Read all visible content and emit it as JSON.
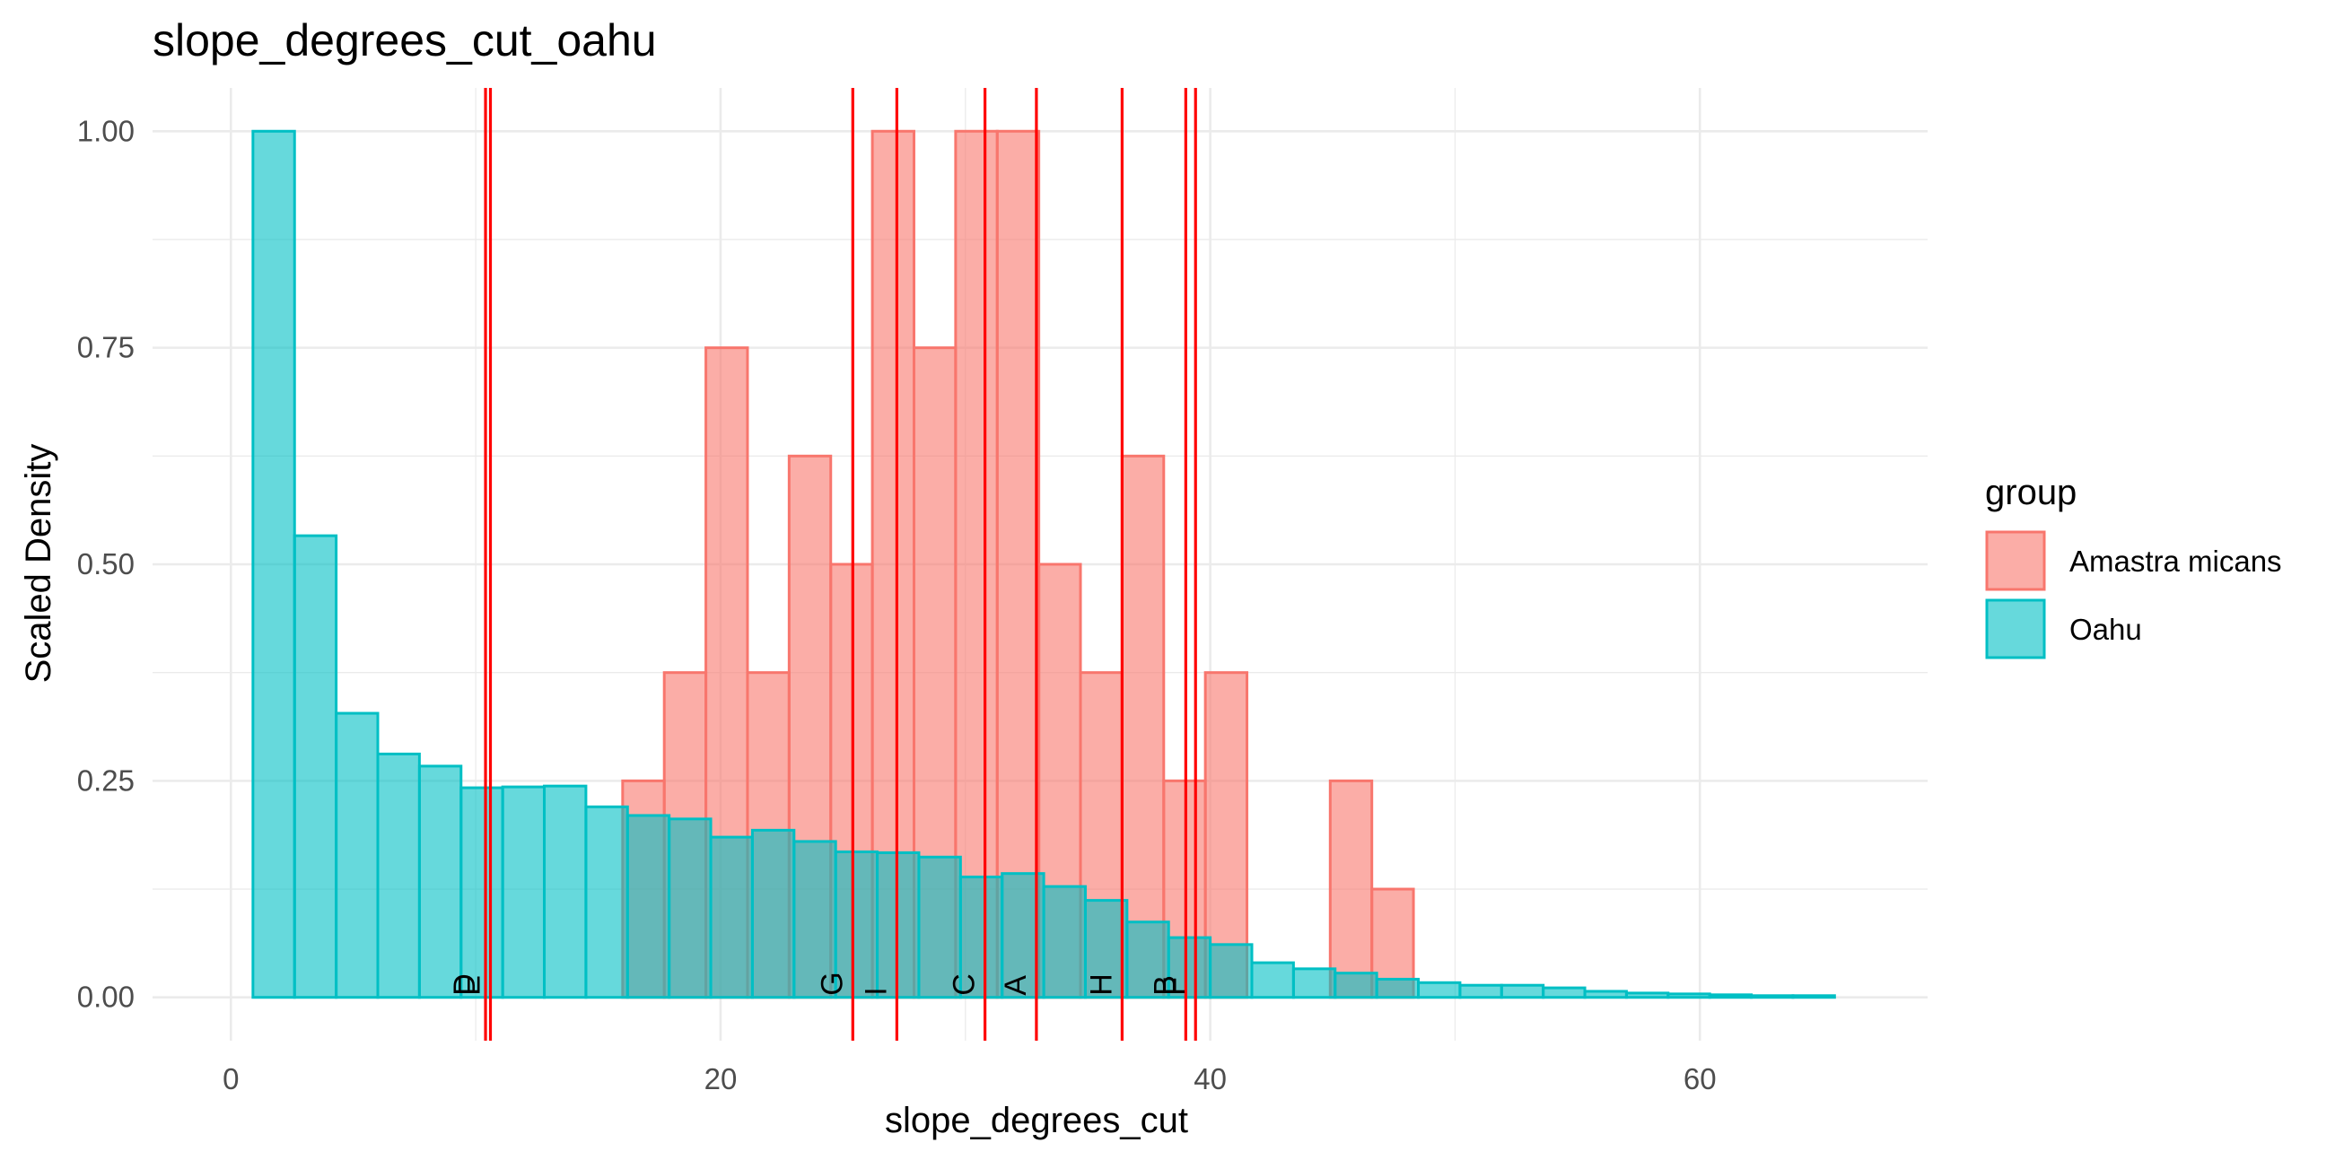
{
  "chart_data": {
    "type": "bar",
    "title": "slope_degrees_cut_oahu",
    "xlabel": "slope_degrees_cut",
    "ylabel": "Scaled Density",
    "xlim": [
      -3.2,
      69.3
    ],
    "ylim": [
      -0.05,
      1.05
    ],
    "x_ticks": [
      0,
      20,
      40,
      60
    ],
    "y_ticks": [
      0,
      0.25,
      0.5,
      0.75,
      1.0
    ],
    "y_tick_labels": [
      "0.00",
      "0.25",
      "0.50",
      "0.75",
      "1.00"
    ],
    "grid": true,
    "legend": {
      "title": "group",
      "position": "right"
    },
    "series": [
      {
        "name": "Amastra micans",
        "color": "#F8766D",
        "bins": [
          {
            "x0": 16.0,
            "x1": 17.7,
            "value": 0.25
          },
          {
            "x0": 17.7,
            "x1": 19.4,
            "value": 0.375
          },
          {
            "x0": 19.4,
            "x1": 21.1,
            "value": 0.75
          },
          {
            "x0": 21.1,
            "x1": 22.8,
            "value": 0.375
          },
          {
            "x0": 22.8,
            "x1": 24.5,
            "value": 0.625
          },
          {
            "x0": 24.5,
            "x1": 26.2,
            "value": 0.5
          },
          {
            "x0": 26.2,
            "x1": 27.9,
            "value": 1.0
          },
          {
            "x0": 27.9,
            "x1": 29.6,
            "value": 0.75
          },
          {
            "x0": 29.6,
            "x1": 31.3,
            "value": 1.0
          },
          {
            "x0": 31.3,
            "x1": 33.0,
            "value": 1.0
          },
          {
            "x0": 33.0,
            "x1": 34.7,
            "value": 0.5
          },
          {
            "x0": 34.7,
            "x1": 36.4,
            "value": 0.375
          },
          {
            "x0": 36.4,
            "x1": 38.1,
            "value": 0.625
          },
          {
            "x0": 38.1,
            "x1": 39.8,
            "value": 0.25
          },
          {
            "x0": 39.8,
            "x1": 41.5,
            "value": 0.375
          },
          {
            "x0": 44.9,
            "x1": 46.6,
            "value": 0.25
          },
          {
            "x0": 46.6,
            "x1": 48.3,
            "value": 0.125
          }
        ]
      },
      {
        "name": "Oahu",
        "color": "#00BFC4",
        "bins": [
          {
            "x0": 0.9,
            "x1": 2.6,
            "value": 1.0
          },
          {
            "x0": 2.6,
            "x1": 4.3,
            "value": 0.533
          },
          {
            "x0": 4.3,
            "x1": 6.0,
            "value": 0.328
          },
          {
            "x0": 6.0,
            "x1": 7.7,
            "value": 0.281
          },
          {
            "x0": 7.7,
            "x1": 9.4,
            "value": 0.267
          },
          {
            "x0": 9.4,
            "x1": 11.1,
            "value": 0.242
          },
          {
            "x0": 11.1,
            "x1": 12.8,
            "value": 0.243
          },
          {
            "x0": 12.8,
            "x1": 14.5,
            "value": 0.244
          },
          {
            "x0": 14.5,
            "x1": 16.2,
            "value": 0.22
          },
          {
            "x0": 16.2,
            "x1": 17.9,
            "value": 0.21
          },
          {
            "x0": 17.9,
            "x1": 19.6,
            "value": 0.206
          },
          {
            "x0": 19.6,
            "x1": 21.3,
            "value": 0.185
          },
          {
            "x0": 21.3,
            "x1": 23.0,
            "value": 0.193
          },
          {
            "x0": 23.0,
            "x1": 24.7,
            "value": 0.18
          },
          {
            "x0": 24.7,
            "x1": 26.4,
            "value": 0.168
          },
          {
            "x0": 26.4,
            "x1": 28.1,
            "value": 0.167
          },
          {
            "x0": 28.1,
            "x1": 29.8,
            "value": 0.162
          },
          {
            "x0": 29.8,
            "x1": 31.5,
            "value": 0.139
          },
          {
            "x0": 31.5,
            "x1": 33.2,
            "value": 0.143
          },
          {
            "x0": 33.2,
            "x1": 34.9,
            "value": 0.128
          },
          {
            "x0": 34.9,
            "x1": 36.6,
            "value": 0.112
          },
          {
            "x0": 36.6,
            "x1": 38.3,
            "value": 0.087
          },
          {
            "x0": 38.3,
            "x1": 40.0,
            "value": 0.069
          },
          {
            "x0": 40.0,
            "x1": 41.7,
            "value": 0.061
          },
          {
            "x0": 41.7,
            "x1": 43.4,
            "value": 0.04
          },
          {
            "x0": 43.4,
            "x1": 45.1,
            "value": 0.033
          },
          {
            "x0": 45.1,
            "x1": 46.8,
            "value": 0.028
          },
          {
            "x0": 46.8,
            "x1": 48.5,
            "value": 0.021
          },
          {
            "x0": 48.5,
            "x1": 50.2,
            "value": 0.017
          },
          {
            "x0": 50.2,
            "x1": 51.9,
            "value": 0.014
          },
          {
            "x0": 51.9,
            "x1": 53.6,
            "value": 0.014
          },
          {
            "x0": 53.6,
            "x1": 55.3,
            "value": 0.011
          },
          {
            "x0": 55.3,
            "x1": 57.0,
            "value": 0.007
          },
          {
            "x0": 57.0,
            "x1": 58.7,
            "value": 0.005
          },
          {
            "x0": 58.7,
            "x1": 60.4,
            "value": 0.004
          },
          {
            "x0": 60.4,
            "x1": 62.1,
            "value": 0.003
          },
          {
            "x0": 62.1,
            "x1": 63.8,
            "value": 0.002
          },
          {
            "x0": 63.8,
            "x1": 65.5,
            "value": 0.002
          }
        ]
      }
    ],
    "reference_lines": {
      "color": "#FF0000",
      "lines": [
        {
          "label": "D",
          "x": 10.4
        },
        {
          "label": "E",
          "x": 10.6
        },
        {
          "label": "G",
          "x": 25.4
        },
        {
          "label": "I",
          "x": 27.2
        },
        {
          "label": "C",
          "x": 30.8
        },
        {
          "label": "A",
          "x": 32.9
        },
        {
          "label": "H",
          "x": 36.4
        },
        {
          "label": "B",
          "x": 39.0
        },
        {
          "label": "F",
          "x": 39.4
        }
      ]
    }
  }
}
